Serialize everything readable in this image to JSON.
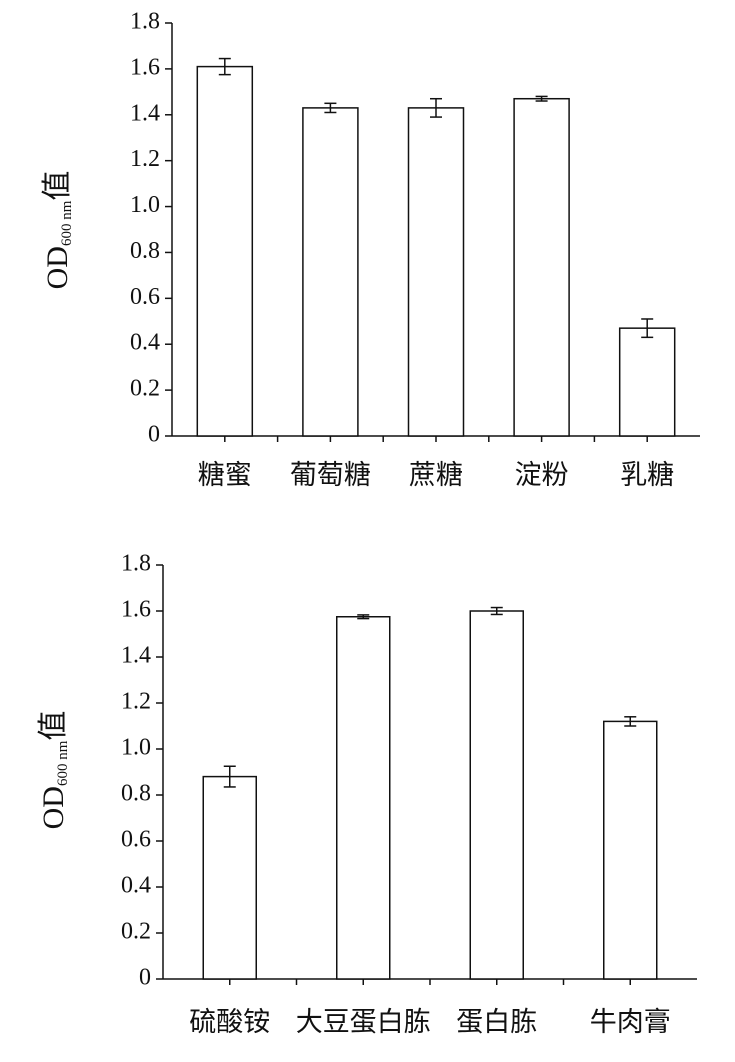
{
  "chart_data": [
    {
      "type": "bar",
      "ylabel": "OD",
      "ylabel_sub": "600 nm",
      "ylabel_suffix": "值",
      "categories": [
        "糖蜜",
        "葡萄糖",
        "蔗糖",
        "淀粉",
        "乳糖"
      ],
      "values": [
        1.61,
        1.43,
        1.43,
        1.47,
        0.47
      ],
      "errors": [
        0.035,
        0.02,
        0.04,
        0.01,
        0.04
      ],
      "color": "#ffffff",
      "ylim": [
        0,
        1.8
      ],
      "yticks": [
        0,
        0.2,
        0.4,
        0.6,
        0.8,
        {
          "value": 1,
          "label": "1.0"
        },
        1.2,
        1.4,
        1.6,
        1.8
      ]
    },
    {
      "type": "bar",
      "ylabel": "OD",
      "ylabel_sub": "600 nm",
      "ylabel_suffix": "值",
      "categories": [
        "硫酸铵",
        "大豆蛋白胨",
        "蛋白胨",
        "牛肉膏"
      ],
      "values": [
        0.88,
        1.575,
        1.6,
        1.12
      ],
      "errors": [
        0.045,
        0.008,
        0.015,
        0.02
      ],
      "color": "#ffffff",
      "ylim": [
        0,
        1.8
      ],
      "yticks": [
        0,
        0.2,
        0.4,
        0.6,
        0.8,
        {
          "value": 1,
          "label": "1.0"
        },
        1.2,
        1.4,
        1.6,
        1.8
      ]
    }
  ]
}
